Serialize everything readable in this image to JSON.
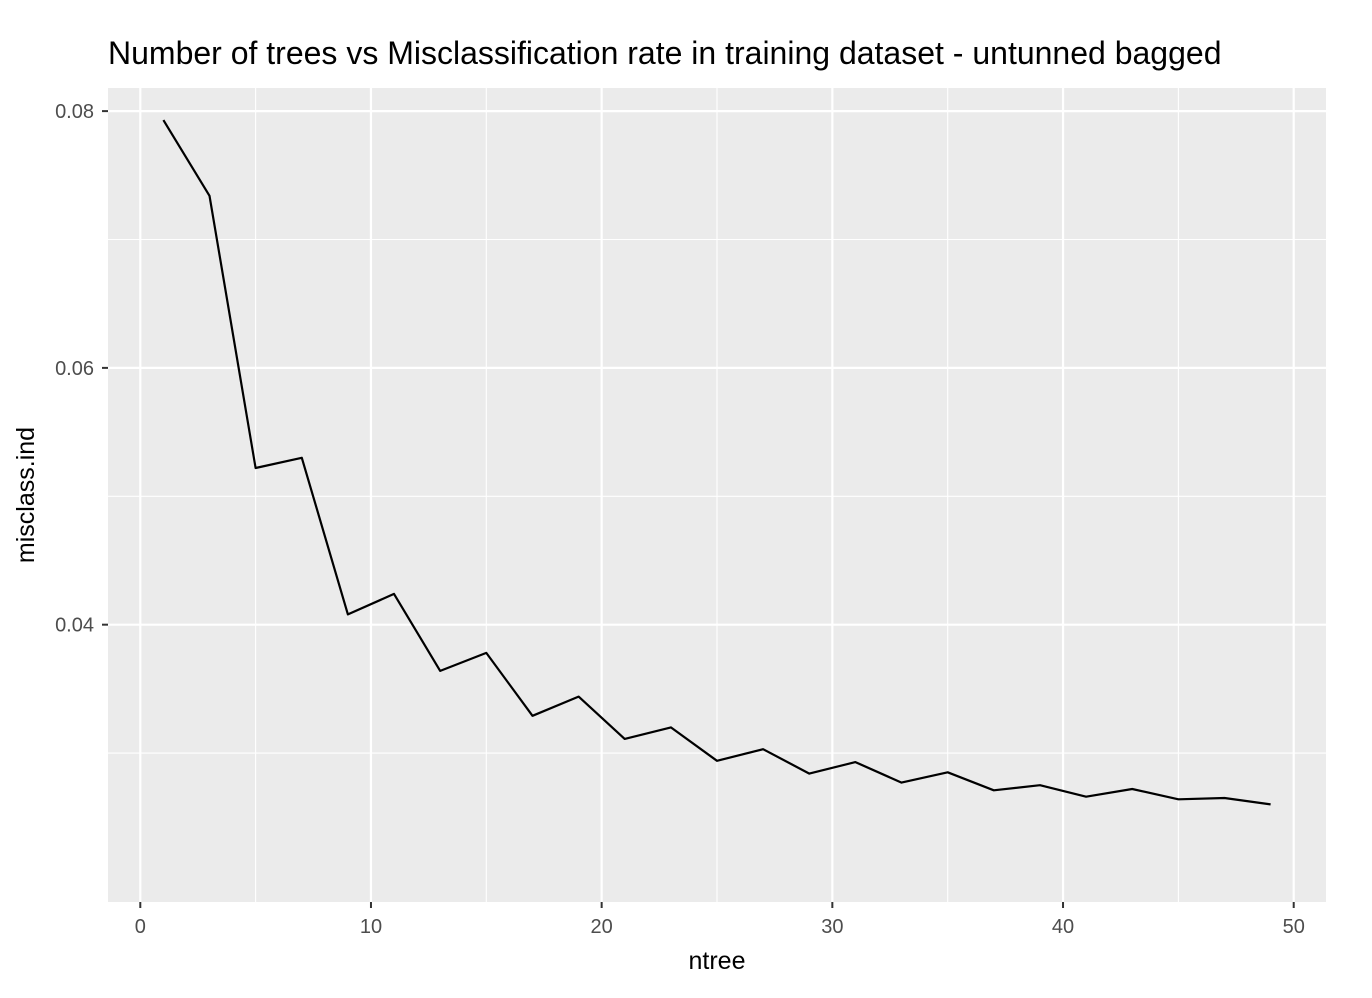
{
  "chart_data": {
    "type": "line",
    "title": "Number of trees vs Misclassification rate in training dataset - untunned bagged",
    "xlabel": "ntree",
    "ylabel": "misclass.ind",
    "xlim": [
      -1.4,
      51.4
    ],
    "ylim": [
      0.0184,
      0.0818
    ],
    "x_ticks": [
      0,
      10,
      20,
      30,
      40,
      50
    ],
    "y_ticks": [
      0.04,
      0.06,
      0.08
    ],
    "x_tick_labels": [
      "0",
      "10",
      "20",
      "30",
      "40",
      "50"
    ],
    "y_tick_labels": [
      "0.04",
      "0.06",
      "0.08"
    ],
    "grid": true,
    "background": "#ebebeb",
    "line_color": "#000000",
    "series": [
      {
        "x": [
          1,
          3,
          5,
          7,
          9,
          11,
          13,
          15,
          17,
          19,
          21,
          23,
          25,
          27,
          29,
          31,
          33,
          35,
          37,
          39,
          41,
          43,
          45,
          47,
          49
        ],
        "values": [
          0.0793,
          0.0734,
          0.0522,
          0.053,
          0.0408,
          0.0424,
          0.0364,
          0.0378,
          0.0329,
          0.0344,
          0.0311,
          0.032,
          0.0294,
          0.0303,
          0.0284,
          0.0293,
          0.0277,
          0.0285,
          0.0271,
          0.0275,
          0.0266,
          0.0272,
          0.0264,
          0.0265,
          0.026
        ]
      }
    ]
  }
}
